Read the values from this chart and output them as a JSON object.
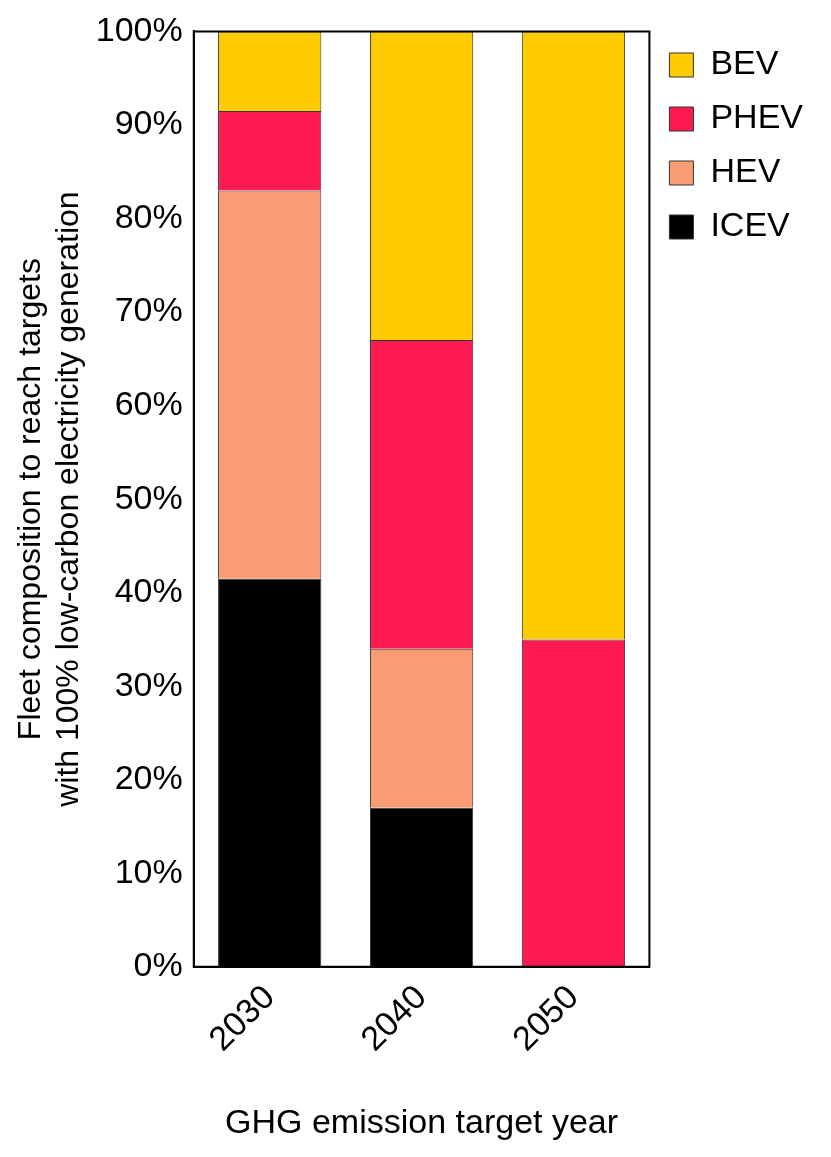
{
  "chart_data": {
    "type": "bar",
    "stacked": true,
    "xlabel": "GHG emission target year",
    "ylabel": "Fleet composition to reach targets\nwith 100% low-carbon electricity generation",
    "categories": [
      "2030",
      "2040",
      "2050"
    ],
    "series": [
      {
        "name": "ICEV",
        "color": "#000000",
        "values": [
          41.5,
          17,
          0
        ]
      },
      {
        "name": "HEV",
        "color": "#f99b73",
        "values": [
          41.5,
          17,
          0
        ]
      },
      {
        "name": "PHEV",
        "color": "#fd1a51",
        "values": [
          8.5,
          33,
          35
        ]
      },
      {
        "name": "BEV",
        "color": "#fecb00",
        "values": [
          8.5,
          33,
          65
        ]
      }
    ],
    "ylim": [
      0,
      100
    ],
    "yticks": [
      {
        "value": 0,
        "label": "0%"
      },
      {
        "value": 10,
        "label": "10%"
      },
      {
        "value": 20,
        "label": "20%"
      },
      {
        "value": 30,
        "label": "30%"
      },
      {
        "value": 40,
        "label": "40%"
      },
      {
        "value": 50,
        "label": "50%"
      },
      {
        "value": 60,
        "label": "60%"
      },
      {
        "value": 70,
        "label": "70%"
      },
      {
        "value": 80,
        "label": "80%"
      },
      {
        "value": 90,
        "label": "90%"
      },
      {
        "value": 100,
        "label": "100%"
      }
    ],
    "grid": false,
    "legend": "top right"
  }
}
